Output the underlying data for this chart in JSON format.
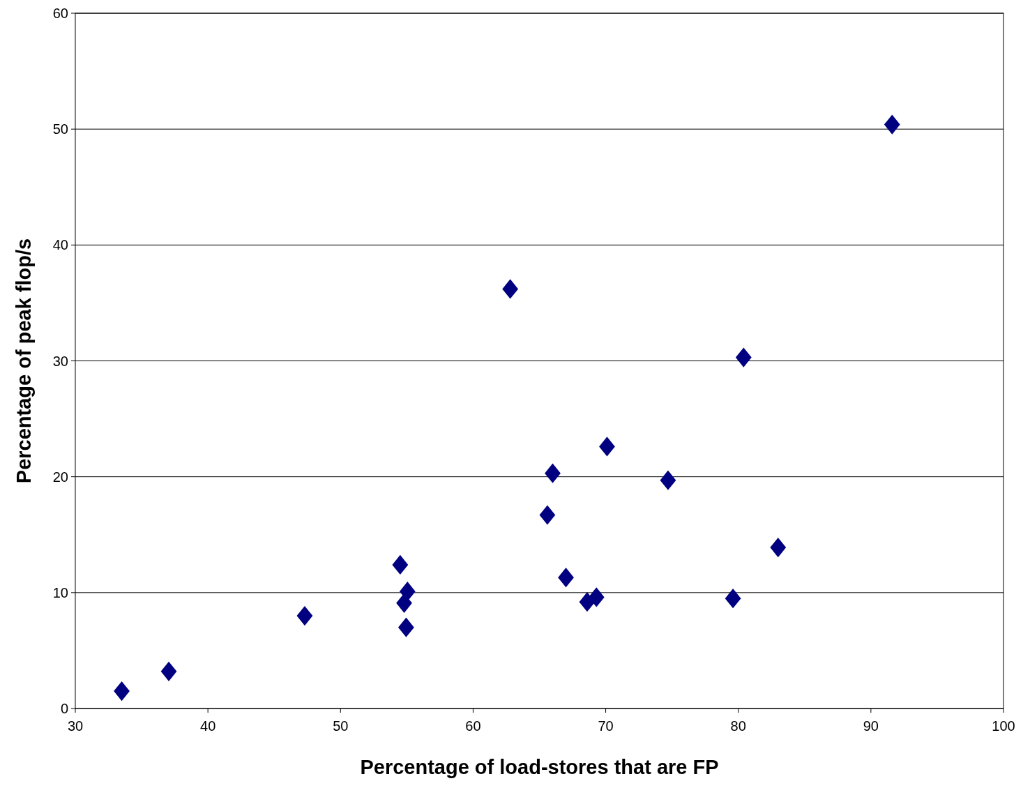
{
  "chart_data": {
    "type": "scatter",
    "xlabel": "Percentage of load-stores that are FP",
    "ylabel": "Percentage of peak flop/s",
    "x": [
      33.5,
      37.05,
      47.3,
      54.5,
      55.05,
      54.8,
      54.95,
      62.8,
      65.6,
      66.0,
      67.0,
      68.6,
      69.3,
      70.1,
      74.7,
      79.6,
      80.4,
      83.0,
      91.6
    ],
    "values": [
      1.5,
      3.2,
      8.0,
      12.4,
      10.1,
      9.1,
      7.0,
      36.2,
      16.7,
      20.3,
      11.3,
      9.2,
      9.6,
      22.6,
      19.7,
      9.5,
      30.3,
      13.9,
      50.4
    ],
    "color": "#000080",
    "marker": "diamond",
    "grid": "y",
    "xlim": [
      30,
      100
    ],
    "xticks": [
      30,
      40,
      50,
      60,
      70,
      80,
      90,
      100
    ],
    "ylim": [
      0,
      60
    ],
    "yticks": [
      0,
      10,
      20,
      30,
      40,
      50,
      60
    ]
  }
}
